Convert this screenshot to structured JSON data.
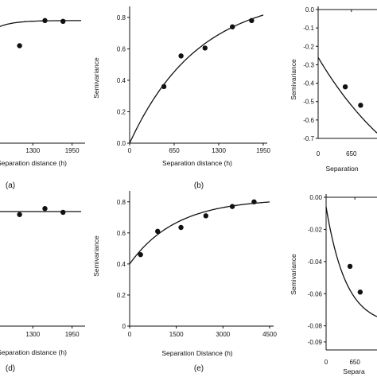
{
  "chart_data": [
    {
      "id": "a",
      "type": "scatter",
      "panel_label": "(a)",
      "xlabel": "Separation distance (h)",
      "ylabel": "",
      "x_ticks": [
        "1300",
        "1950"
      ],
      "y_ticks": [],
      "xlim": [
        650,
        2100
      ],
      "ylim": [
        0.0,
        0.85
      ],
      "points": [
        {
          "x": 1080,
          "y": 0.62
        },
        {
          "x": 1500,
          "y": 0.78
        },
        {
          "x": 1800,
          "y": 0.775
        }
      ],
      "fit": {
        "model": "exponential",
        "nugget": 0.0,
        "sill": 0.78,
        "range": 250
      }
    },
    {
      "id": "b",
      "type": "scatter",
      "panel_label": "(b)",
      "xlabel": "Separation distance (h)",
      "ylabel": "Semivariance",
      "x_ticks": [
        "0",
        "650",
        "1300",
        "1950"
      ],
      "y_ticks": [
        "0.0",
        "0.2",
        "0.4",
        "0.6",
        "0.8"
      ],
      "xlim": [
        0,
        1950
      ],
      "ylim": [
        0.0,
        0.85
      ],
      "points": [
        {
          "x": 500,
          "y": 0.36
        },
        {
          "x": 750,
          "y": 0.555
        },
        {
          "x": 1100,
          "y": 0.605
        },
        {
          "x": 1500,
          "y": 0.74
        },
        {
          "x": 1780,
          "y": 0.78
        }
      ],
      "fit": {
        "model": "exponential",
        "nugget": 0.0,
        "sill": 0.95,
        "range": 1000
      }
    },
    {
      "id": "c",
      "type": "scatter",
      "panel_label": "",
      "xlabel": "Separation",
      "ylabel": "Semivariance",
      "x_ticks": [
        "0",
        "650"
      ],
      "y_ticks": [
        "0.0",
        "-0.1",
        "-0.2",
        "-0.3",
        "-0.4",
        "-0.5",
        "-0.6",
        "-0.7"
      ],
      "xlim": [
        0,
        1150
      ],
      "ylim": [
        -0.7,
        0.0
      ],
      "points": [
        {
          "x": 530,
          "y": -0.42
        },
        {
          "x": 830,
          "y": -0.52
        }
      ],
      "fit": {
        "model": "exponential",
        "nugget": -0.26,
        "sill": -1.2,
        "range": 2000
      }
    },
    {
      "id": "d",
      "type": "scatter",
      "panel_label": "(d)",
      "xlabel": "Separation distance (h)",
      "ylabel": "",
      "x_ticks": [
        "1300",
        "1950"
      ],
      "y_ticks": [],
      "xlim": [
        650,
        2100
      ],
      "ylim": [
        0.0,
        0.85
      ],
      "points": [
        {
          "x": 1080,
          "y": 0.745
        },
        {
          "x": 1500,
          "y": 0.785
        },
        {
          "x": 1800,
          "y": 0.76
        }
      ],
      "fit": {
        "model": "constant",
        "value": 0.765
      }
    },
    {
      "id": "e",
      "type": "scatter",
      "panel_label": "(e)",
      "xlabel": "Separation Distance (h)",
      "ylabel": "Semivariance",
      "x_ticks": [
        "0",
        "1500",
        "3000",
        "4500"
      ],
      "y_ticks": [
        "0",
        "0.2",
        "0.4",
        "0.6",
        "0.8"
      ],
      "xlim": [
        0,
        4500
      ],
      "ylim": [
        0.0,
        0.85
      ],
      "points": [
        {
          "x": 350,
          "y": 0.46
        },
        {
          "x": 900,
          "y": 0.61
        },
        {
          "x": 1650,
          "y": 0.635
        },
        {
          "x": 2450,
          "y": 0.71
        },
        {
          "x": 3300,
          "y": 0.77
        },
        {
          "x": 4000,
          "y": 0.8
        }
      ],
      "fit": {
        "model": "exponential",
        "nugget": 0.4,
        "sill": 0.82,
        "range": 1500
      }
    },
    {
      "id": "f",
      "type": "scatter",
      "panel_label": "",
      "xlabel": "Separa",
      "ylabel": "Semivariance",
      "x_ticks": [
        "0",
        "650"
      ],
      "y_ticks": [
        "0.00",
        "-0.02",
        "-0.04",
        "-0.06",
        "-0.08",
        "-0.09"
      ],
      "xlim": [
        0,
        1150
      ],
      "ylim": [
        -0.095,
        0.0
      ],
      "points": [
        {
          "x": 540,
          "y": -0.043
        },
        {
          "x": 770,
          "y": -0.059
        }
      ],
      "fit": {
        "model": "exponential",
        "nugget": -0.006,
        "sill": -0.08,
        "range": 450
      }
    }
  ]
}
